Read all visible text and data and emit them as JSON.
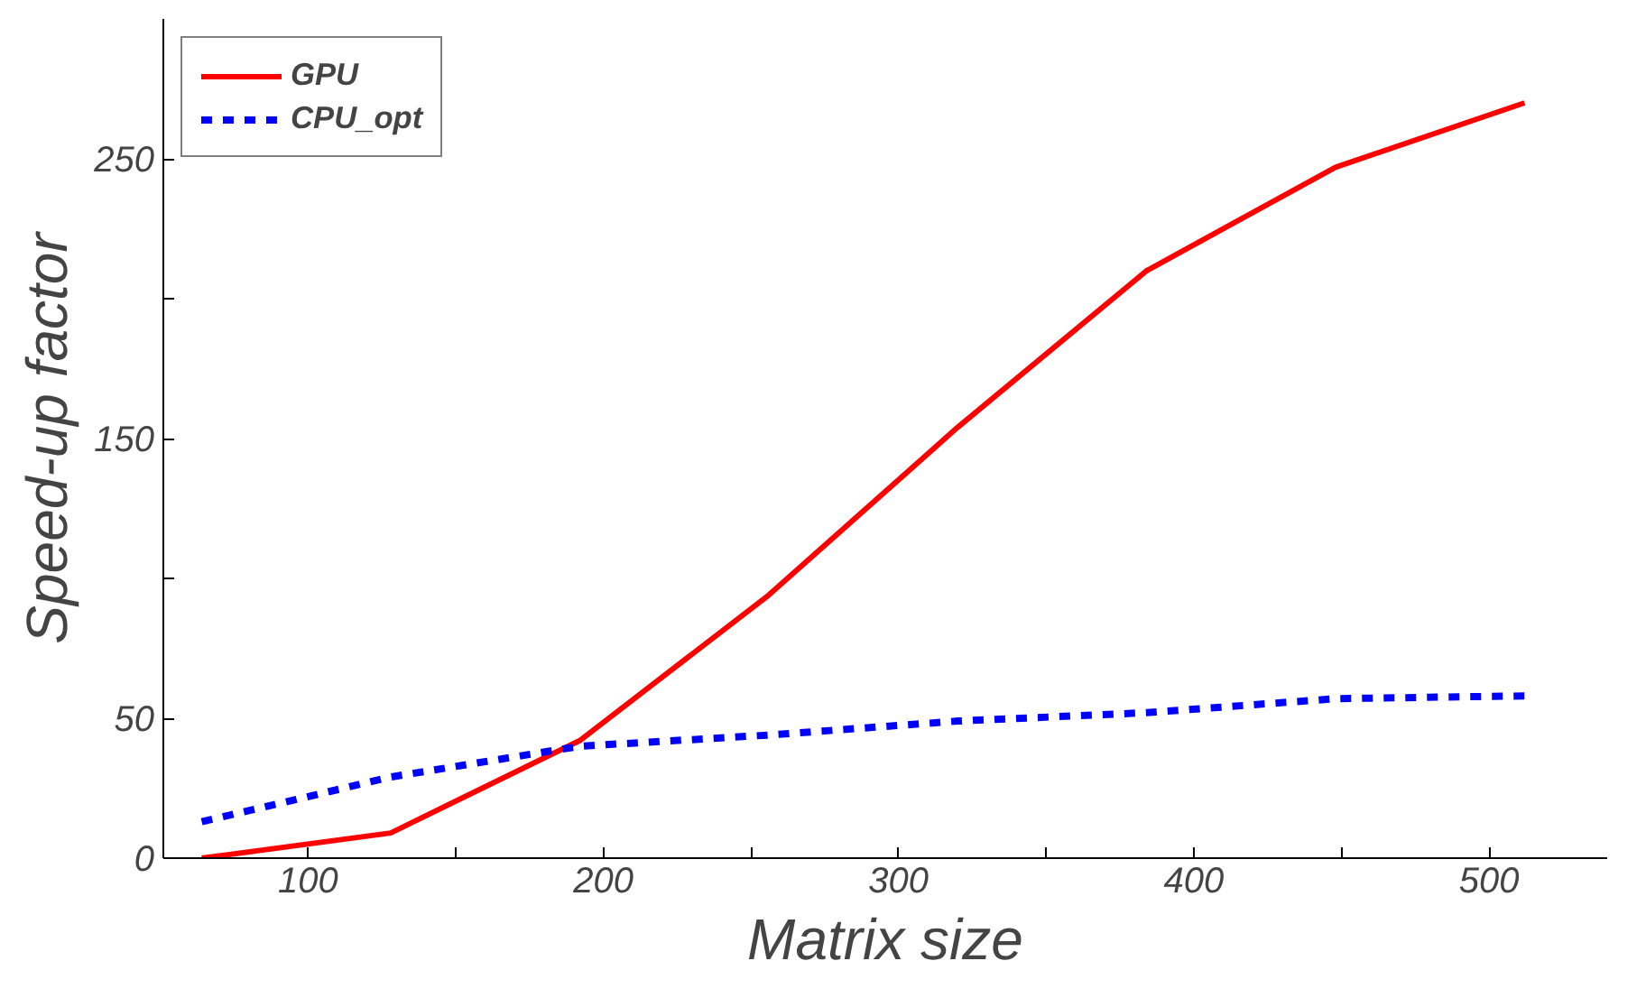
{
  "chart_data": {
    "type": "line",
    "xlabel": "Matrix size",
    "ylabel": "Speed-up factor",
    "x": [
      64,
      128,
      192,
      256,
      320,
      384,
      448,
      512
    ],
    "series": [
      {
        "name": "GPU",
        "color": "#ff0000",
        "line_style": "solid",
        "values": [
          0,
          9,
          42,
          94,
          154,
          210,
          247,
          270
        ]
      },
      {
        "name": "CPU_opt",
        "color": "#0000ff",
        "line_style": "dashed",
        "values": [
          13,
          29,
          40,
          44,
          49,
          52,
          57,
          58
        ]
      }
    ],
    "xlim": [
      51,
      540
    ],
    "ylim": [
      0,
      300
    ],
    "xticks": [
      100,
      {
        "value": 150,
        "label": null
      },
      200,
      {
        "value": 250,
        "label": null
      },
      300,
      {
        "value": 350,
        "label": null
      },
      400,
      {
        "value": 450,
        "label": null
      },
      500
    ],
    "yticks": [
      0,
      50,
      {
        "value": 100,
        "label": null
      },
      150,
      {
        "value": 200,
        "label": null
      },
      250
    ],
    "grid": false,
    "legend": "top left",
    "marker": "none"
  }
}
